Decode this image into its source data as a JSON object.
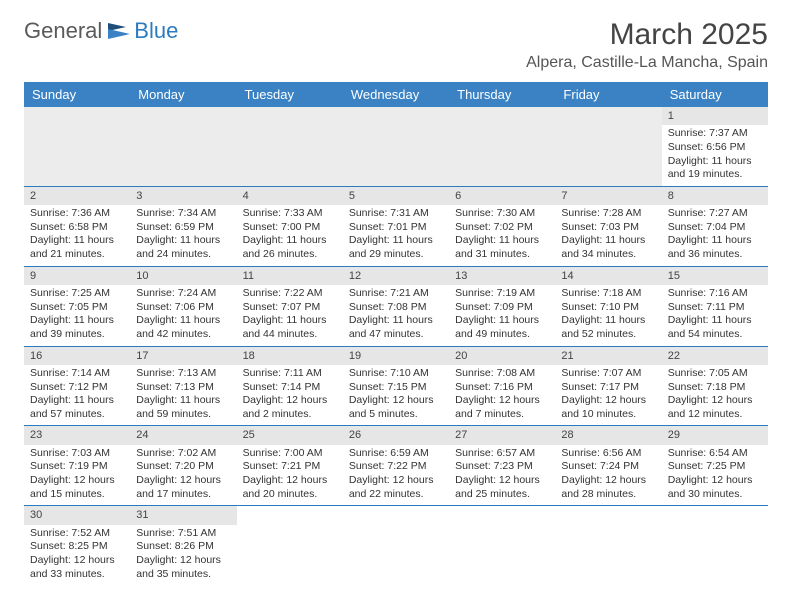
{
  "logo": {
    "text1": "General",
    "text2": "Blue"
  },
  "title": "March 2025",
  "location": "Alpera, Castille-La Mancha, Spain",
  "day_names": [
    "Sunday",
    "Monday",
    "Tuesday",
    "Wednesday",
    "Thursday",
    "Friday",
    "Saturday"
  ],
  "colors": {
    "header_bg": "#3a82c4",
    "border": "#2b7bbf",
    "daynum_bg": "#e6e6e6",
    "empty_bg": "#ececec"
  },
  "weeks": [
    [
      null,
      null,
      null,
      null,
      null,
      null,
      {
        "n": "1",
        "sr": "Sunrise: 7:37 AM",
        "ss": "Sunset: 6:56 PM",
        "dl": "Daylight: 11 hours and 19 minutes."
      }
    ],
    [
      {
        "n": "2",
        "sr": "Sunrise: 7:36 AM",
        "ss": "Sunset: 6:58 PM",
        "dl": "Daylight: 11 hours and 21 minutes."
      },
      {
        "n": "3",
        "sr": "Sunrise: 7:34 AM",
        "ss": "Sunset: 6:59 PM",
        "dl": "Daylight: 11 hours and 24 minutes."
      },
      {
        "n": "4",
        "sr": "Sunrise: 7:33 AM",
        "ss": "Sunset: 7:00 PM",
        "dl": "Daylight: 11 hours and 26 minutes."
      },
      {
        "n": "5",
        "sr": "Sunrise: 7:31 AM",
        "ss": "Sunset: 7:01 PM",
        "dl": "Daylight: 11 hours and 29 minutes."
      },
      {
        "n": "6",
        "sr": "Sunrise: 7:30 AM",
        "ss": "Sunset: 7:02 PM",
        "dl": "Daylight: 11 hours and 31 minutes."
      },
      {
        "n": "7",
        "sr": "Sunrise: 7:28 AM",
        "ss": "Sunset: 7:03 PM",
        "dl": "Daylight: 11 hours and 34 minutes."
      },
      {
        "n": "8",
        "sr": "Sunrise: 7:27 AM",
        "ss": "Sunset: 7:04 PM",
        "dl": "Daylight: 11 hours and 36 minutes."
      }
    ],
    [
      {
        "n": "9",
        "sr": "Sunrise: 7:25 AM",
        "ss": "Sunset: 7:05 PM",
        "dl": "Daylight: 11 hours and 39 minutes."
      },
      {
        "n": "10",
        "sr": "Sunrise: 7:24 AM",
        "ss": "Sunset: 7:06 PM",
        "dl": "Daylight: 11 hours and 42 minutes."
      },
      {
        "n": "11",
        "sr": "Sunrise: 7:22 AM",
        "ss": "Sunset: 7:07 PM",
        "dl": "Daylight: 11 hours and 44 minutes."
      },
      {
        "n": "12",
        "sr": "Sunrise: 7:21 AM",
        "ss": "Sunset: 7:08 PM",
        "dl": "Daylight: 11 hours and 47 minutes."
      },
      {
        "n": "13",
        "sr": "Sunrise: 7:19 AM",
        "ss": "Sunset: 7:09 PM",
        "dl": "Daylight: 11 hours and 49 minutes."
      },
      {
        "n": "14",
        "sr": "Sunrise: 7:18 AM",
        "ss": "Sunset: 7:10 PM",
        "dl": "Daylight: 11 hours and 52 minutes."
      },
      {
        "n": "15",
        "sr": "Sunrise: 7:16 AM",
        "ss": "Sunset: 7:11 PM",
        "dl": "Daylight: 11 hours and 54 minutes."
      }
    ],
    [
      {
        "n": "16",
        "sr": "Sunrise: 7:14 AM",
        "ss": "Sunset: 7:12 PM",
        "dl": "Daylight: 11 hours and 57 minutes."
      },
      {
        "n": "17",
        "sr": "Sunrise: 7:13 AM",
        "ss": "Sunset: 7:13 PM",
        "dl": "Daylight: 11 hours and 59 minutes."
      },
      {
        "n": "18",
        "sr": "Sunrise: 7:11 AM",
        "ss": "Sunset: 7:14 PM",
        "dl": "Daylight: 12 hours and 2 minutes."
      },
      {
        "n": "19",
        "sr": "Sunrise: 7:10 AM",
        "ss": "Sunset: 7:15 PM",
        "dl": "Daylight: 12 hours and 5 minutes."
      },
      {
        "n": "20",
        "sr": "Sunrise: 7:08 AM",
        "ss": "Sunset: 7:16 PM",
        "dl": "Daylight: 12 hours and 7 minutes."
      },
      {
        "n": "21",
        "sr": "Sunrise: 7:07 AM",
        "ss": "Sunset: 7:17 PM",
        "dl": "Daylight: 12 hours and 10 minutes."
      },
      {
        "n": "22",
        "sr": "Sunrise: 7:05 AM",
        "ss": "Sunset: 7:18 PM",
        "dl": "Daylight: 12 hours and 12 minutes."
      }
    ],
    [
      {
        "n": "23",
        "sr": "Sunrise: 7:03 AM",
        "ss": "Sunset: 7:19 PM",
        "dl": "Daylight: 12 hours and 15 minutes."
      },
      {
        "n": "24",
        "sr": "Sunrise: 7:02 AM",
        "ss": "Sunset: 7:20 PM",
        "dl": "Daylight: 12 hours and 17 minutes."
      },
      {
        "n": "25",
        "sr": "Sunrise: 7:00 AM",
        "ss": "Sunset: 7:21 PM",
        "dl": "Daylight: 12 hours and 20 minutes."
      },
      {
        "n": "26",
        "sr": "Sunrise: 6:59 AM",
        "ss": "Sunset: 7:22 PM",
        "dl": "Daylight: 12 hours and 22 minutes."
      },
      {
        "n": "27",
        "sr": "Sunrise: 6:57 AM",
        "ss": "Sunset: 7:23 PM",
        "dl": "Daylight: 12 hours and 25 minutes."
      },
      {
        "n": "28",
        "sr": "Sunrise: 6:56 AM",
        "ss": "Sunset: 7:24 PM",
        "dl": "Daylight: 12 hours and 28 minutes."
      },
      {
        "n": "29",
        "sr": "Sunrise: 6:54 AM",
        "ss": "Sunset: 7:25 PM",
        "dl": "Daylight: 12 hours and 30 minutes."
      }
    ],
    [
      {
        "n": "30",
        "sr": "Sunrise: 7:52 AM",
        "ss": "Sunset: 8:25 PM",
        "dl": "Daylight: 12 hours and 33 minutes."
      },
      {
        "n": "31",
        "sr": "Sunrise: 7:51 AM",
        "ss": "Sunset: 8:26 PM",
        "dl": "Daylight: 12 hours and 35 minutes."
      },
      null,
      null,
      null,
      null,
      null
    ]
  ]
}
